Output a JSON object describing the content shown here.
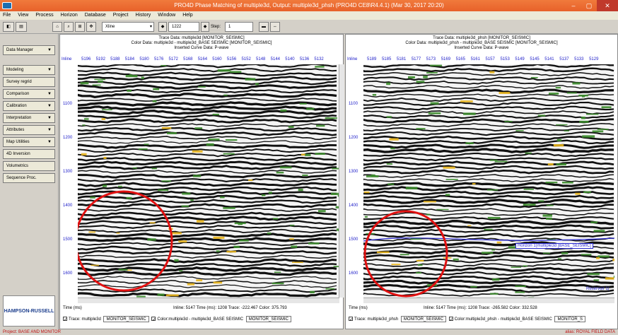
{
  "window": {
    "title": "PRO4D   Phase Matching of multiple3d, Output: multiple3d_phsh (PRO4D CE8\\R4.4.1)  (Mar 30, 2017  20:20)"
  },
  "menu": [
    "File",
    "View",
    "Process",
    "Horizon",
    "Database",
    "Project",
    "History",
    "Window",
    "Help"
  ],
  "toolbar": {
    "line_type": "Xline",
    "line_number": "1222",
    "step_label": "Step:",
    "step_value": "1"
  },
  "sidebar": {
    "items": [
      {
        "label": "Data Manager",
        "arrow": "▼"
      },
      {
        "label": "Modeling",
        "arrow": "▼"
      },
      {
        "label": "Survey regrid",
        "arrow": ""
      },
      {
        "label": "Comparison",
        "arrow": "▼"
      },
      {
        "label": "Calibration",
        "arrow": "▼"
      },
      {
        "label": "Interpretation",
        "arrow": "▼"
      },
      {
        "label": "Attributes",
        "arrow": "▼"
      },
      {
        "label": "Map Utilities",
        "arrow": "▼"
      },
      {
        "label": "4D Inversion",
        "arrow": ""
      },
      {
        "label": "Volumetrics",
        "arrow": ""
      },
      {
        "label": "Sequence Proc.",
        "arrow": ""
      }
    ],
    "logo": "HAMPSON-RUSSELL"
  },
  "left": {
    "hdr1": "Trace Data: multiple3d [MONITOR_SEISMIC]",
    "hdr2": "Color Data: multiple3d - multiple3d_BASE SEISMIC [MONITOR_SEISMIC]",
    "hdr3": "Inserted Curve Data:  P-wave",
    "inline_label": "Inline",
    "inlines": [
      "5196",
      "5192",
      "5188",
      "5184",
      "5180",
      "5176",
      "5172",
      "5168",
      "5164",
      "5160",
      "5156",
      "5152",
      "5148",
      "5144",
      "5140",
      "5136",
      "5132"
    ],
    "time_ticks": [
      "1100",
      "1200",
      "1300",
      "1400",
      "1500",
      "1600"
    ],
    "time_label": "Time (ms)",
    "status": "Inline: 5147  Time (ms): 1208  Trace: -222.467  Color: 375.793",
    "trace_label": "Trace: multiple3d",
    "trace_combo": "MONITOR_SEISMIC",
    "color_label": "Color:multiple3d - multiple3d_BASE SEISMIC",
    "color_combo": "MONITOR_SEISMIC"
  },
  "right": {
    "hdr1": "Trace Data: multiple3d_phsh [MONITOR_SEISMIC]",
    "hdr2": "Color Data: multiple3d_phsh - multiple3d_BASE SEISMIC [MONITOR_SEISMIC]",
    "hdr3": "Inserted Curve Data:  P-wave",
    "inline_label": "Inline",
    "inlines": [
      "5189",
      "5185",
      "5181",
      "5177",
      "5173",
      "5169",
      "5165",
      "5161",
      "5157",
      "5153",
      "5149",
      "5145",
      "5141",
      "5137",
      "5133",
      "5129"
    ],
    "time_ticks": [
      "1100",
      "1200",
      "1300",
      "1400",
      "1500",
      "1600"
    ],
    "time_label": "Time (ms)",
    "status": "Inline: 5147  Time (ms): 1208  Trace: -265.582  Color: 332.528",
    "trace_label": "Trace: multiple3d_phsh",
    "trace_combo": "MONITOR_SEISMIC",
    "color_label": "Color:multiple3d_phsh - multiple3d_BASE SEISMIC",
    "color_combo": "MONITOR_S",
    "horizon_label": "Horizon 1(multiple3d [BASE_SEISMIC]",
    "reservoir_label": "Reservoir 1("
  },
  "bottom": {
    "project": "Project: BASE AND MONITOR",
    "alias": "alias: ROYAL FIELD DATA"
  },
  "colors": {
    "title": "#e8612a",
    "annotation": "#e01010",
    "tick_blue": "#1a1ac8",
    "amplitude_yellow": "#e8b41a",
    "amplitude_green": "#3a8a2a"
  }
}
